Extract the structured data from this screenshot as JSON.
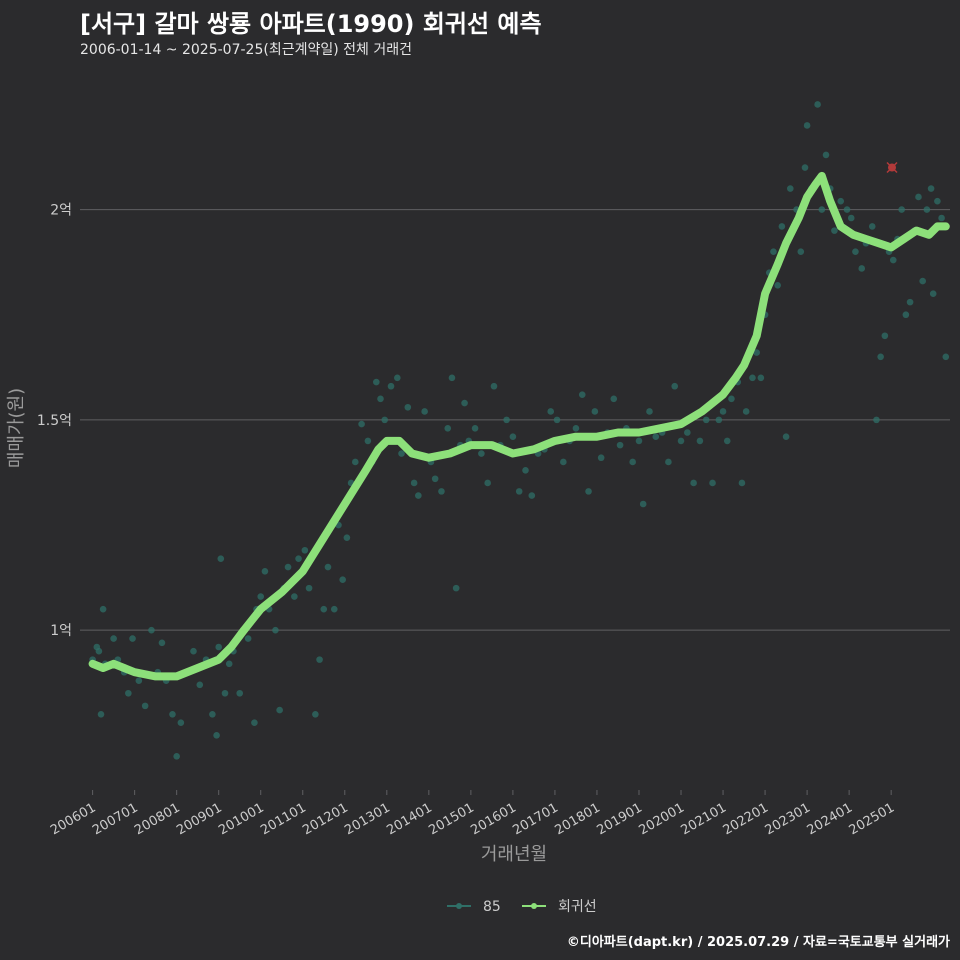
{
  "title": "[서구] 갈마 쌍룡 아파트(1990) 회귀선 예측",
  "subtitle": "2006-01-14 ~ 2025-07-25(최근계약일) 전체 거래건",
  "caption": "©디아파트(dapt.kr) / 2025.07.29 / 자료=국토교통부 실거래가",
  "colors": {
    "background": "#2b2b2d",
    "points": "#2f6f67",
    "regression": "#8de07a",
    "highlight": "#b23a3a",
    "grid": "#5f5f62",
    "text": "#cccccc"
  },
  "chart_data": {
    "type": "scatter",
    "xlabel": "거래년월",
    "ylabel": "매매가(원)",
    "xlim": [
      2005.7,
      2026.4
    ],
    "ylim": [
      0.62,
      2.32
    ],
    "y_unit": "억",
    "y_ticks": [
      1,
      1.5,
      2
    ],
    "y_tick_labels": [
      "1억",
      "1.5억",
      "2억"
    ],
    "x_ticks": [
      2006,
      2007,
      2008,
      2009,
      2010,
      2011,
      2012,
      2013,
      2014,
      2015,
      2016,
      2017,
      2018,
      2019,
      2020,
      2021,
      2022,
      2023,
      2024,
      2025
    ],
    "x_tick_labels": [
      "200601",
      "200701",
      "200801",
      "200901",
      "201001",
      "201101",
      "201201",
      "201301",
      "201401",
      "201501",
      "201601",
      "201701",
      "201801",
      "201901",
      "202001",
      "202101",
      "202201",
      "202301",
      "202401",
      "202501"
    ],
    "grid": true,
    "legend_position": "bottom",
    "legend": [
      {
        "label": "85",
        "color": "#2f6f67"
      },
      {
        "label": "회귀선",
        "color": "#8de07a"
      }
    ],
    "series": [
      {
        "name": "85",
        "kind": "points",
        "points": [
          [
            2006.0,
            0.93
          ],
          [
            2006.1,
            0.96
          ],
          [
            2006.15,
            0.95
          ],
          [
            2006.2,
            0.8
          ],
          [
            2006.25,
            1.05
          ],
          [
            2006.3,
            0.92
          ],
          [
            2006.5,
            0.98
          ],
          [
            2006.6,
            0.93
          ],
          [
            2006.75,
            0.9
          ],
          [
            2006.85,
            0.85
          ],
          [
            2006.95,
            0.98
          ],
          [
            2007.1,
            0.88
          ],
          [
            2007.25,
            0.82
          ],
          [
            2007.4,
            1.0
          ],
          [
            2007.55,
            0.9
          ],
          [
            2007.65,
            0.97
          ],
          [
            2007.75,
            0.88
          ],
          [
            2007.9,
            0.8
          ],
          [
            2008.0,
            0.7
          ],
          [
            2008.1,
            0.78
          ],
          [
            2008.25,
            0.9
          ],
          [
            2008.4,
            0.95
          ],
          [
            2008.55,
            0.87
          ],
          [
            2008.7,
            0.93
          ],
          [
            2008.85,
            0.8
          ],
          [
            2008.95,
            0.75
          ],
          [
            2009.0,
            0.96
          ],
          [
            2009.05,
            1.17
          ],
          [
            2009.15,
            0.85
          ],
          [
            2009.25,
            0.92
          ],
          [
            2009.35,
            0.95
          ],
          [
            2009.5,
            0.85
          ],
          [
            2009.7,
            0.98
          ],
          [
            2009.85,
            0.78
          ],
          [
            2009.9,
            1.05
          ],
          [
            2010.0,
            1.08
          ],
          [
            2010.1,
            1.14
          ],
          [
            2010.2,
            1.05
          ],
          [
            2010.35,
            1.0
          ],
          [
            2010.45,
            0.81
          ],
          [
            2010.55,
            1.1
          ],
          [
            2010.65,
            1.15
          ],
          [
            2010.8,
            1.08
          ],
          [
            2010.9,
            1.17
          ],
          [
            2011.05,
            1.19
          ],
          [
            2011.15,
            1.1
          ],
          [
            2011.3,
            0.8
          ],
          [
            2011.4,
            0.93
          ],
          [
            2011.5,
            1.05
          ],
          [
            2011.6,
            1.15
          ],
          [
            2011.75,
            1.05
          ],
          [
            2011.85,
            1.25
          ],
          [
            2011.95,
            1.12
          ],
          [
            2012.05,
            1.22
          ],
          [
            2012.15,
            1.35
          ],
          [
            2012.25,
            1.4
          ],
          [
            2012.4,
            1.49
          ],
          [
            2012.55,
            1.45
          ],
          [
            2012.65,
            1.4
          ],
          [
            2012.75,
            1.59
          ],
          [
            2012.85,
            1.55
          ],
          [
            2012.95,
            1.5
          ],
          [
            2013.1,
            1.58
          ],
          [
            2013.25,
            1.6
          ],
          [
            2013.35,
            1.42
          ],
          [
            2013.5,
            1.53
          ],
          [
            2013.65,
            1.35
          ],
          [
            2013.75,
            1.32
          ],
          [
            2013.9,
            1.52
          ],
          [
            2014.05,
            1.4
          ],
          [
            2014.15,
            1.36
          ],
          [
            2014.3,
            1.33
          ],
          [
            2014.45,
            1.48
          ],
          [
            2014.55,
            1.6
          ],
          [
            2014.65,
            1.1
          ],
          [
            2014.75,
            1.44
          ],
          [
            2014.85,
            1.54
          ],
          [
            2014.95,
            1.45
          ],
          [
            2015.1,
            1.48
          ],
          [
            2015.25,
            1.42
          ],
          [
            2015.4,
            1.35
          ],
          [
            2015.55,
            1.58
          ],
          [
            2015.7,
            1.44
          ],
          [
            2015.85,
            1.5
          ],
          [
            2016.0,
            1.46
          ],
          [
            2016.15,
            1.33
          ],
          [
            2016.3,
            1.38
          ],
          [
            2016.45,
            1.32
          ],
          [
            2016.6,
            1.42
          ],
          [
            2016.75,
            1.43
          ],
          [
            2016.9,
            1.52
          ],
          [
            2017.05,
            1.5
          ],
          [
            2017.2,
            1.4
          ],
          [
            2017.35,
            1.45
          ],
          [
            2017.5,
            1.48
          ],
          [
            2017.65,
            1.56
          ],
          [
            2017.8,
            1.33
          ],
          [
            2017.95,
            1.52
          ],
          [
            2018.1,
            1.41
          ],
          [
            2018.25,
            1.47
          ],
          [
            2018.4,
            1.55
          ],
          [
            2018.55,
            1.44
          ],
          [
            2018.7,
            1.48
          ],
          [
            2018.85,
            1.4
          ],
          [
            2019.0,
            1.45
          ],
          [
            2019.1,
            1.3
          ],
          [
            2019.25,
            1.52
          ],
          [
            2019.4,
            1.46
          ],
          [
            2019.55,
            1.47
          ],
          [
            2019.7,
            1.4
          ],
          [
            2019.85,
            1.58
          ],
          [
            2020.0,
            1.45
          ],
          [
            2020.15,
            1.47
          ],
          [
            2020.3,
            1.35
          ],
          [
            2020.45,
            1.45
          ],
          [
            2020.6,
            1.5
          ],
          [
            2020.75,
            1.35
          ],
          [
            2020.9,
            1.5
          ],
          [
            2021.0,
            1.52
          ],
          [
            2021.1,
            1.45
          ],
          [
            2021.2,
            1.55
          ],
          [
            2021.35,
            1.59
          ],
          [
            2021.45,
            1.35
          ],
          [
            2021.55,
            1.52
          ],
          [
            2021.7,
            1.6
          ],
          [
            2021.8,
            1.66
          ],
          [
            2021.9,
            1.6
          ],
          [
            2022.0,
            1.75
          ],
          [
            2022.1,
            1.85
          ],
          [
            2022.2,
            1.9
          ],
          [
            2022.3,
            1.82
          ],
          [
            2022.4,
            1.96
          ],
          [
            2022.5,
            1.46
          ],
          [
            2022.6,
            2.05
          ],
          [
            2022.75,
            2.0
          ],
          [
            2022.85,
            1.9
          ],
          [
            2022.95,
            2.1
          ],
          [
            2023.0,
            2.2
          ],
          [
            2023.1,
            2.05
          ],
          [
            2023.25,
            2.25
          ],
          [
            2023.35,
            2.0
          ],
          [
            2023.45,
            2.13
          ],
          [
            2023.55,
            2.05
          ],
          [
            2023.65,
            1.95
          ],
          [
            2023.8,
            2.02
          ],
          [
            2023.95,
            2.0
          ],
          [
            2024.05,
            1.98
          ],
          [
            2024.15,
            1.9
          ],
          [
            2024.3,
            1.86
          ],
          [
            2024.4,
            1.92
          ],
          [
            2024.55,
            1.96
          ],
          [
            2024.65,
            1.5
          ],
          [
            2024.75,
            1.65
          ],
          [
            2024.85,
            1.7
          ],
          [
            2024.95,
            1.9
          ],
          [
            2025.05,
            1.88
          ],
          [
            2025.15,
            1.93
          ],
          [
            2025.25,
            2.0
          ],
          [
            2025.35,
            1.75
          ],
          [
            2025.45,
            1.78
          ],
          [
            2025.55,
            1.95
          ],
          [
            2025.65,
            2.03
          ],
          [
            2025.75,
            1.83
          ],
          [
            2025.85,
            2.0
          ],
          [
            2025.95,
            2.05
          ],
          [
            2026.0,
            1.8
          ],
          [
            2026.1,
            2.02
          ],
          [
            2026.2,
            1.98
          ],
          [
            2026.3,
            1.65
          ]
        ]
      },
      {
        "name": "회귀선",
        "kind": "line",
        "points": [
          [
            2006.0,
            0.92
          ],
          [
            2006.25,
            0.91
          ],
          [
            2006.5,
            0.92
          ],
          [
            2006.75,
            0.91
          ],
          [
            2007.0,
            0.9
          ],
          [
            2007.5,
            0.89
          ],
          [
            2008.0,
            0.89
          ],
          [
            2008.5,
            0.91
          ],
          [
            2009.0,
            0.93
          ],
          [
            2009.3,
            0.96
          ],
          [
            2009.6,
            1.0
          ],
          [
            2010.0,
            1.05
          ],
          [
            2010.5,
            1.09
          ],
          [
            2011.0,
            1.14
          ],
          [
            2011.5,
            1.22
          ],
          [
            2012.0,
            1.3
          ],
          [
            2012.5,
            1.38
          ],
          [
            2012.8,
            1.43
          ],
          [
            2013.0,
            1.45
          ],
          [
            2013.3,
            1.45
          ],
          [
            2013.6,
            1.42
          ],
          [
            2014.0,
            1.41
          ],
          [
            2014.5,
            1.42
          ],
          [
            2015.0,
            1.44
          ],
          [
            2015.5,
            1.44
          ],
          [
            2016.0,
            1.42
          ],
          [
            2016.5,
            1.43
          ],
          [
            2017.0,
            1.45
          ],
          [
            2017.5,
            1.46
          ],
          [
            2018.0,
            1.46
          ],
          [
            2018.5,
            1.47
          ],
          [
            2019.0,
            1.47
          ],
          [
            2019.5,
            1.48
          ],
          [
            2020.0,
            1.49
          ],
          [
            2020.5,
            1.52
          ],
          [
            2021.0,
            1.56
          ],
          [
            2021.3,
            1.6
          ],
          [
            2021.5,
            1.63
          ],
          [
            2021.8,
            1.7
          ],
          [
            2022.0,
            1.8
          ],
          [
            2022.3,
            1.87
          ],
          [
            2022.5,
            1.92
          ],
          [
            2022.8,
            1.98
          ],
          [
            2023.0,
            2.03
          ],
          [
            2023.2,
            2.06
          ],
          [
            2023.35,
            2.08
          ],
          [
            2023.55,
            2.02
          ],
          [
            2023.8,
            1.96
          ],
          [
            2024.1,
            1.94
          ],
          [
            2024.4,
            1.93
          ],
          [
            2024.7,
            1.92
          ],
          [
            2025.0,
            1.91
          ],
          [
            2025.3,
            1.93
          ],
          [
            2025.6,
            1.95
          ],
          [
            2025.9,
            1.94
          ],
          [
            2026.1,
            1.96
          ],
          [
            2026.3,
            1.96
          ]
        ]
      },
      {
        "name": "",
        "kind": "highlight",
        "points": [
          [
            2025.02,
            2.1
          ]
        ]
      }
    ]
  }
}
